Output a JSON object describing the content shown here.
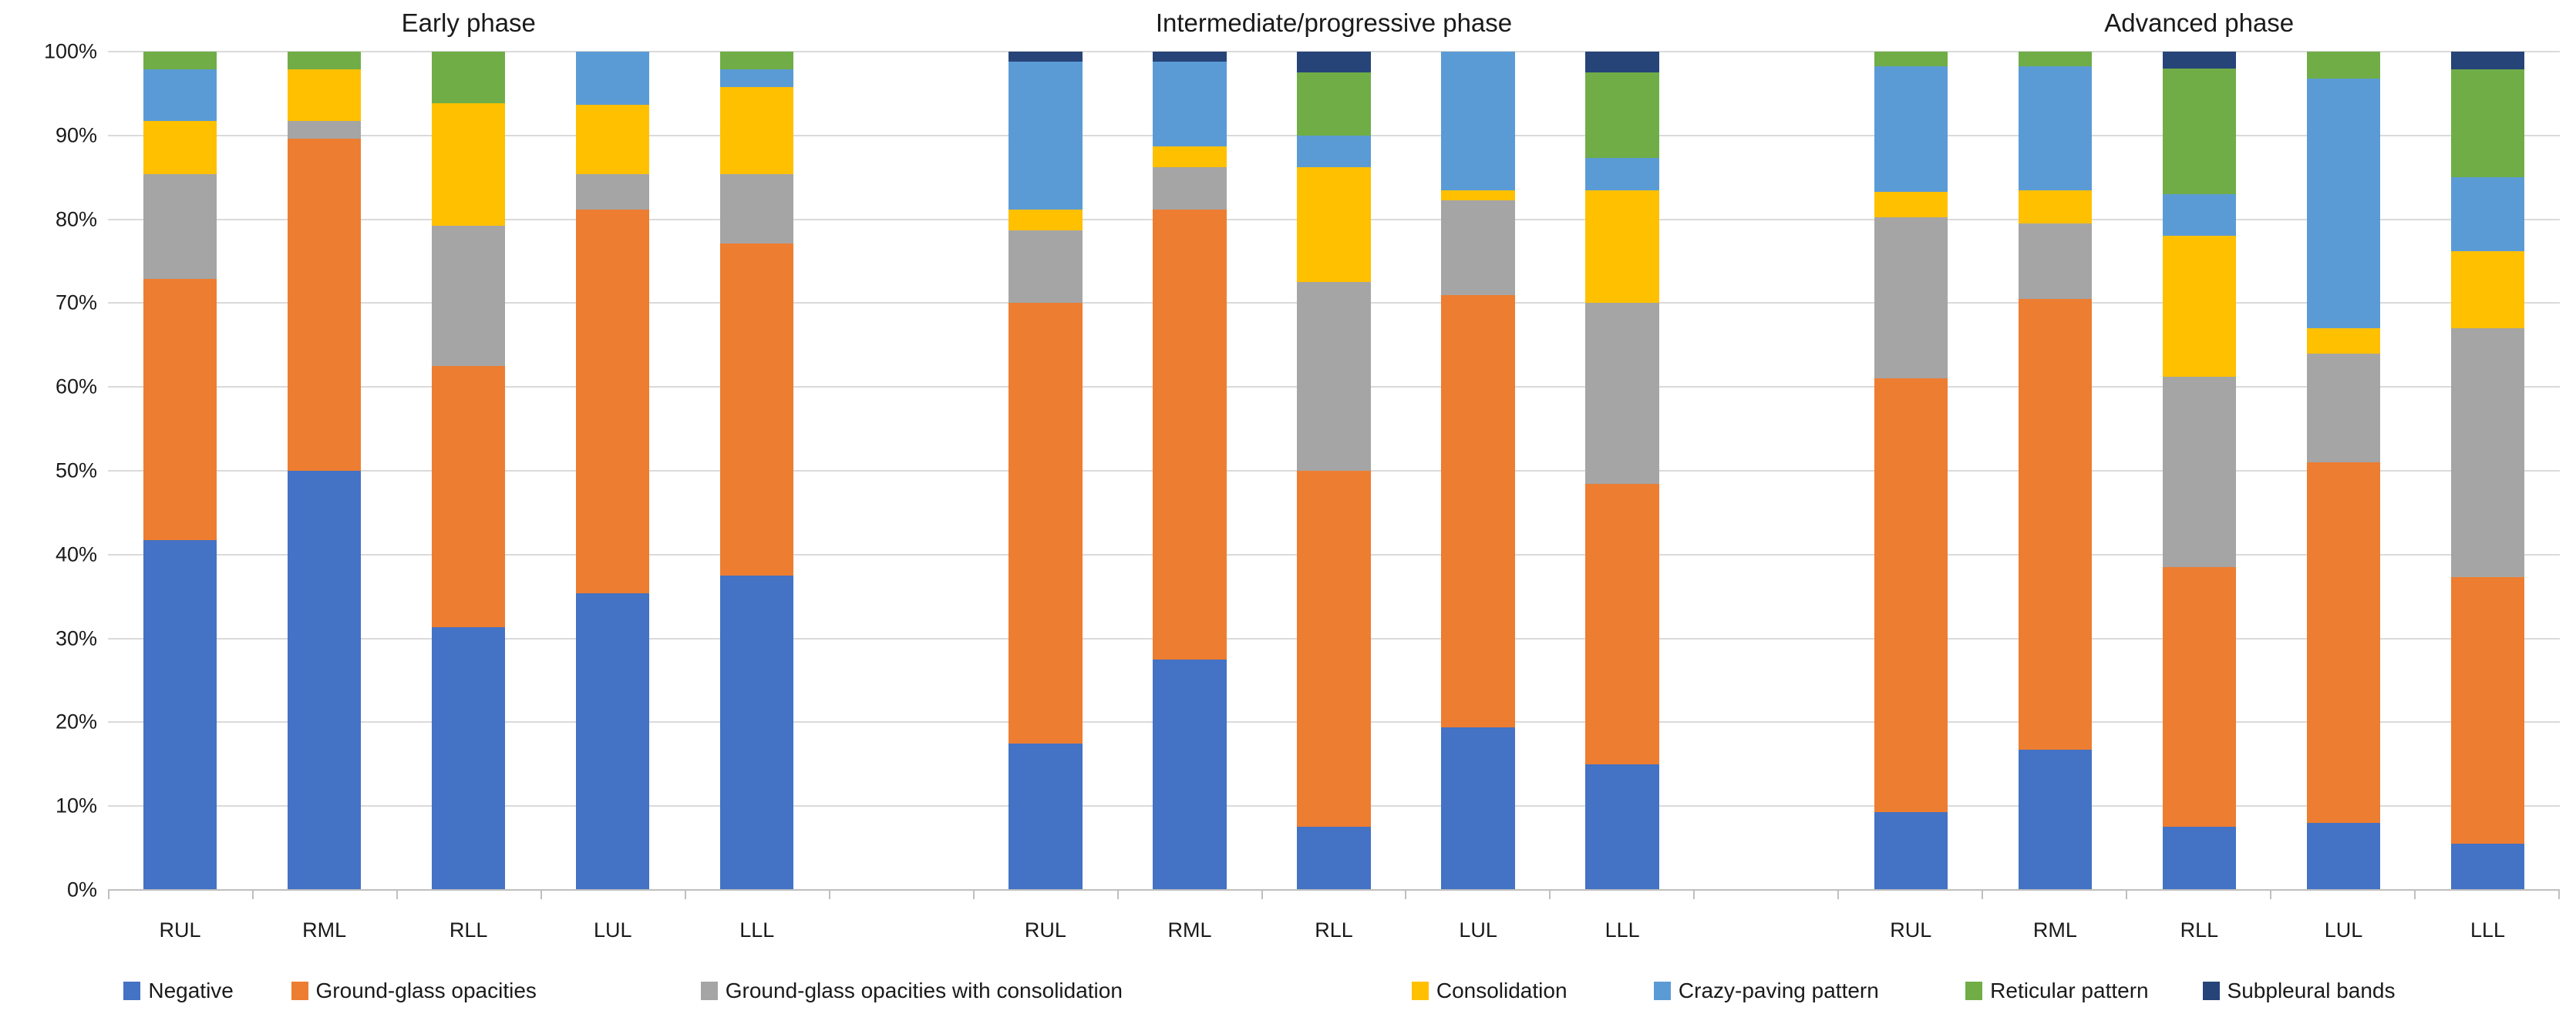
{
  "figure": {
    "background": "#ffffff",
    "gridline_color": "#dadada",
    "axis_color": "#bfbfbf"
  },
  "chart_data": {
    "type": "bar",
    "stacked": true,
    "unit": "%",
    "ylim": [
      0,
      100
    ],
    "grid": "horizontal",
    "legend_position": "bottom",
    "y_ticks": [
      "100%",
      "90%",
      "80%",
      "70%",
      "60%",
      "50%",
      "40%",
      "30%",
      "20%",
      "10%",
      "0%"
    ],
    "legend": [
      {
        "label": "Negative",
        "color": "#4472C4"
      },
      {
        "label": "Ground-glass opacities",
        "color": "#ED7D31"
      },
      {
        "label": "Ground-glass opacities with consolidation",
        "color": "#A5A5A5"
      },
      {
        "label": "Consolidation",
        "color": "#FFC000"
      },
      {
        "label": "Crazy-paving pattern",
        "color": "#5B9BD5"
      },
      {
        "label": "Reticular pattern",
        "color": "#70AD47"
      },
      {
        "label": "Subpleural bands",
        "color": "#264478"
      }
    ],
    "groups": [
      {
        "title": "Early phase",
        "categories": [
          "RUL",
          "RML",
          "RLL",
          "LUL",
          "LLL"
        ],
        "series": [
          {
            "name": "Negative",
            "values": [
              41.7,
              50.0,
              31.3,
              35.4,
              37.5
            ]
          },
          {
            "name": "Ground-glass opacities",
            "values": [
              31.2,
              39.6,
              31.2,
              45.8,
              39.6
            ]
          },
          {
            "name": "Ground-glass opacities with consolidation",
            "values": [
              12.5,
              2.1,
              16.7,
              4.2,
              8.3
            ]
          },
          {
            "name": "Consolidation",
            "values": [
              6.3,
              6.2,
              14.6,
              8.3,
              10.4
            ]
          },
          {
            "name": "Crazy-paving pattern",
            "values": [
              6.2,
              0,
              0,
              6.3,
              2.1
            ]
          },
          {
            "name": "Reticular pattern",
            "values": [
              2.1,
              2.1,
              6.2,
              0,
              2.1
            ]
          },
          {
            "name": "Subpleural bands",
            "values": [
              0,
              0,
              0,
              0,
              0
            ]
          }
        ]
      },
      {
        "title": "Intermediate/progressive phase",
        "categories": [
          "RUL",
          "RML",
          "RLL",
          "LUL",
          "LLL"
        ],
        "series": [
          {
            "name": "Negative",
            "values": [
              17.5,
              27.5,
              7.5,
              19.4,
              15.0
            ]
          },
          {
            "name": "Ground-glass opacities",
            "values": [
              52.5,
              53.7,
              42.5,
              51.6,
              33.4
            ]
          },
          {
            "name": "Ground-glass opacities with consolidation",
            "values": [
              8.7,
              5.0,
              22.5,
              11.3,
              21.6
            ]
          },
          {
            "name": "Consolidation",
            "values": [
              2.5,
              2.5,
              13.7,
              1.2,
              13.5
            ]
          },
          {
            "name": "Crazy-paving pattern",
            "values": [
              17.6,
              10.1,
              3.8,
              16.5,
              3.8
            ]
          },
          {
            "name": "Reticular pattern",
            "values": [
              0,
              0,
              7.5,
              0,
              10.2
            ]
          },
          {
            "name": "Subpleural bands",
            "values": [
              1.2,
              1.2,
              2.5,
              0,
              2.5
            ]
          }
        ]
      },
      {
        "title": "Advanced phase",
        "categories": [
          "RUL",
          "RML",
          "RLL",
          "LUL",
          "LLL"
        ],
        "series": [
          {
            "name": "Negative",
            "values": [
              9.3,
              16.7,
              7.5,
              8.0,
              5.5
            ]
          },
          {
            "name": "Ground-glass opacities",
            "values": [
              51.7,
              53.8,
              31.0,
              43.0,
              31.8
            ]
          },
          {
            "name": "Ground-glass opacities with consolidation",
            "values": [
              19.2,
              9.0,
              22.7,
              13.0,
              29.7
            ]
          },
          {
            "name": "Consolidation",
            "values": [
              3.1,
              4.0,
              16.8,
              3.0,
              9.2
            ]
          },
          {
            "name": "Crazy-paving pattern",
            "values": [
              15.0,
              14.8,
              5.0,
              29.8,
              8.8
            ]
          },
          {
            "name": "Reticular pattern",
            "values": [
              1.7,
              1.7,
              15.0,
              3.2,
              12.9
            ]
          },
          {
            "name": "Subpleural bands",
            "values": [
              0,
              0,
              2.0,
              0,
              2.1
            ]
          }
        ]
      }
    ]
  }
}
